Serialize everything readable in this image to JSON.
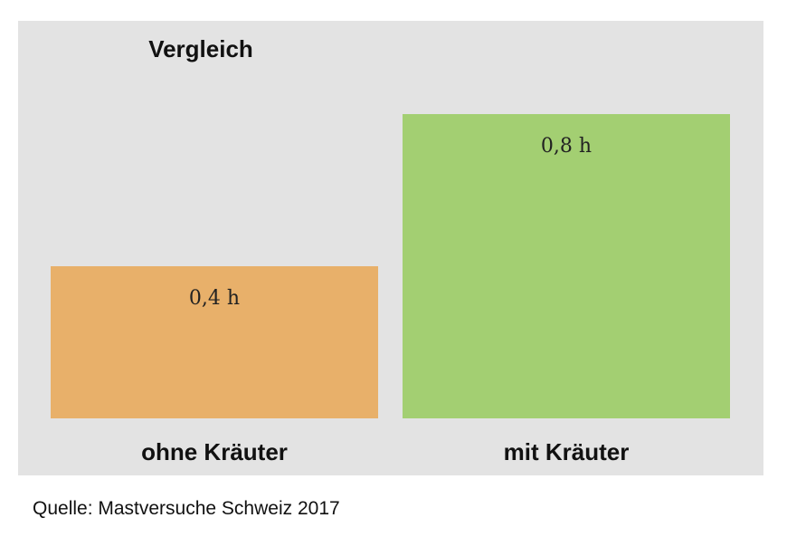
{
  "chart_data": {
    "type": "bar",
    "title": "Vergleich",
    "categories": [
      "ohne Kräuter",
      "mit Kräuter"
    ],
    "values": [
      0.4,
      0.8
    ],
    "data_labels": [
      "0,4 h",
      "0,8 h"
    ],
    "unit": "h",
    "ylim": [
      0,
      0.8
    ],
    "grid": false,
    "legend": "none",
    "colors": [
      "#e8b06a",
      "#a3cf72"
    ],
    "background_color": "#e3e3e3"
  },
  "source": "Quelle: Mastversuche Schweiz 2017"
}
